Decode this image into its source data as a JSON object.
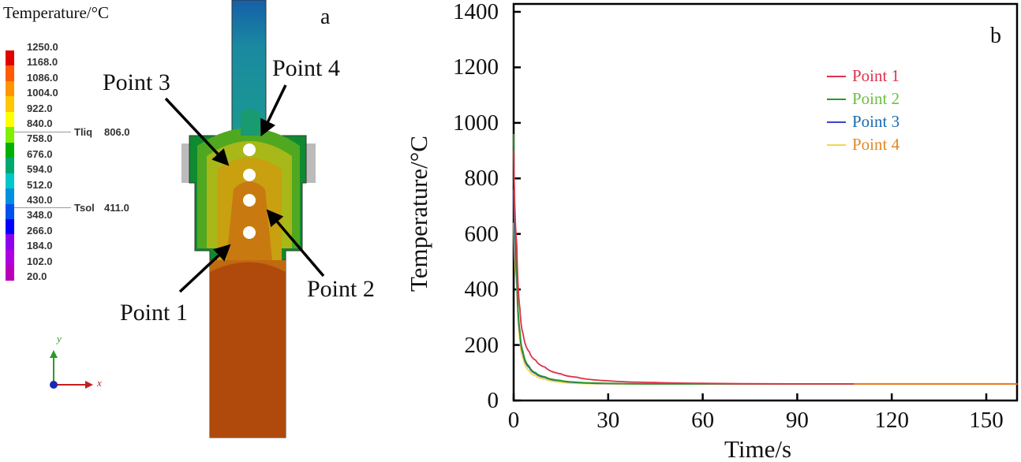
{
  "panel_a": {
    "label": "a",
    "colorbar_title": "Temperature/°C",
    "colorbar_labels": [
      "1250.0",
      "1168.0",
      "1086.0",
      "1004.0",
      "922.0",
      "840.0",
      "758.0",
      "676.0",
      "594.0",
      "512.0",
      "430.0",
      "348.0",
      "266.0",
      "184.0",
      "102.0",
      "20.0"
    ],
    "colorbar_colors": [
      "#e00000",
      "#ff5a00",
      "#ff9600",
      "#ffc800",
      "#ffff00",
      "#80f000",
      "#00b000",
      "#00a870",
      "#00c8c8",
      "#0090e0",
      "#0050f0",
      "#0000ff",
      "#9000f0",
      "#b000e0",
      "#b800b8"
    ],
    "markers": [
      {
        "label": "Tliq",
        "value": "806.0"
      },
      {
        "label": "Tsol",
        "value": "411.0"
      }
    ],
    "points": [
      "Point 1",
      "Point 2",
      "Point 3",
      "Point 4"
    ],
    "axis_y": "y",
    "axis_x": "x"
  },
  "chart_data": {
    "type": "line",
    "panel_label": "b",
    "title": "",
    "xlabel": "Time/s",
    "ylabel": "Temperature/°C",
    "xlim": [
      0,
      160
    ],
    "ylim": [
      0,
      1400
    ],
    "xticks": [
      0,
      30,
      60,
      90,
      120,
      150
    ],
    "yticks": [
      0,
      200,
      400,
      600,
      800,
      1000,
      1200,
      1400
    ],
    "grid": false,
    "legend_position": "top-right",
    "x": [
      0,
      1,
      2,
      3,
      5,
      7,
      10,
      15,
      20,
      30,
      45,
      60,
      90,
      120,
      160
    ],
    "series": [
      {
        "name": "Point 1",
        "color": "#e0304a",
        "text_color": "#e0304a",
        "values": [
          900,
          560,
          330,
          240,
          175,
          145,
          120,
          96,
          84,
          71,
          65,
          62,
          60,
          60,
          60
        ]
      },
      {
        "name": "Point 2",
        "color": "#2a9a2a",
        "text_color": "#6cc040",
        "values": [
          960,
          460,
          250,
          175,
          122,
          100,
          85,
          72,
          66,
          62,
          60,
          60,
          60,
          60,
          60
        ]
      },
      {
        "name": "Point 3",
        "color": "#4040d0",
        "text_color": "#1a6ab0",
        "values": [
          760,
          440,
          240,
          168,
          118,
          97,
          83,
          71,
          65,
          61,
          60,
          60,
          60,
          60,
          60
        ]
      },
      {
        "name": "Point 4",
        "color": "#f0d850",
        "text_color": "#e08a20",
        "values": [
          640,
          410,
          215,
          152,
          106,
          89,
          76,
          66,
          62,
          60,
          59,
          59,
          59,
          59,
          59
        ]
      }
    ]
  }
}
